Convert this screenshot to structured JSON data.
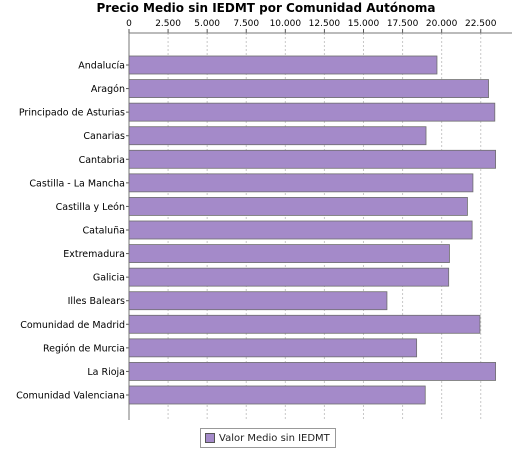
{
  "chart_data": {
    "type": "bar",
    "orientation": "horizontal",
    "title": "Precio Medio sin IEDMT por Comunidad Autónoma",
    "xlabel": "",
    "ylabel": "",
    "xlim": [
      0,
      24500
    ],
    "x_ticks": [
      0,
      2500,
      5000,
      7500,
      10000,
      12500,
      15000,
      17500,
      20000,
      22500
    ],
    "x_tick_labels": [
      "0",
      "2.500",
      "5.000",
      "7.500",
      "10.000",
      "12.500",
      "15.000",
      "17.500",
      "20.000",
      "22.500"
    ],
    "x_axis_position": "top",
    "grid": true,
    "legend_position": "bottom",
    "categories": [
      "Andalucía",
      "Aragón",
      "Principado de Asturias",
      "Canarias",
      "Cantabria",
      "Castilla - La Mancha",
      "Castilla y León",
      "Cataluña",
      "Extremadura",
      "Galicia",
      "Illes Balears",
      "Comunidad de Madrid",
      "Región de Murcia",
      "La Rioja",
      "Comunidad Valenciana"
    ],
    "series": [
      {
        "name": "Valor Medio sin IEDMT",
        "color": "#a48ac9",
        "values": [
          19700,
          23000,
          23400,
          19000,
          23450,
          22000,
          21650,
          21950,
          20500,
          20450,
          16500,
          22450,
          18400,
          23450,
          18950
        ]
      }
    ]
  },
  "legend": {
    "label": "Valor Medio sin IEDMT",
    "swatch_color": "#a48ac9"
  }
}
